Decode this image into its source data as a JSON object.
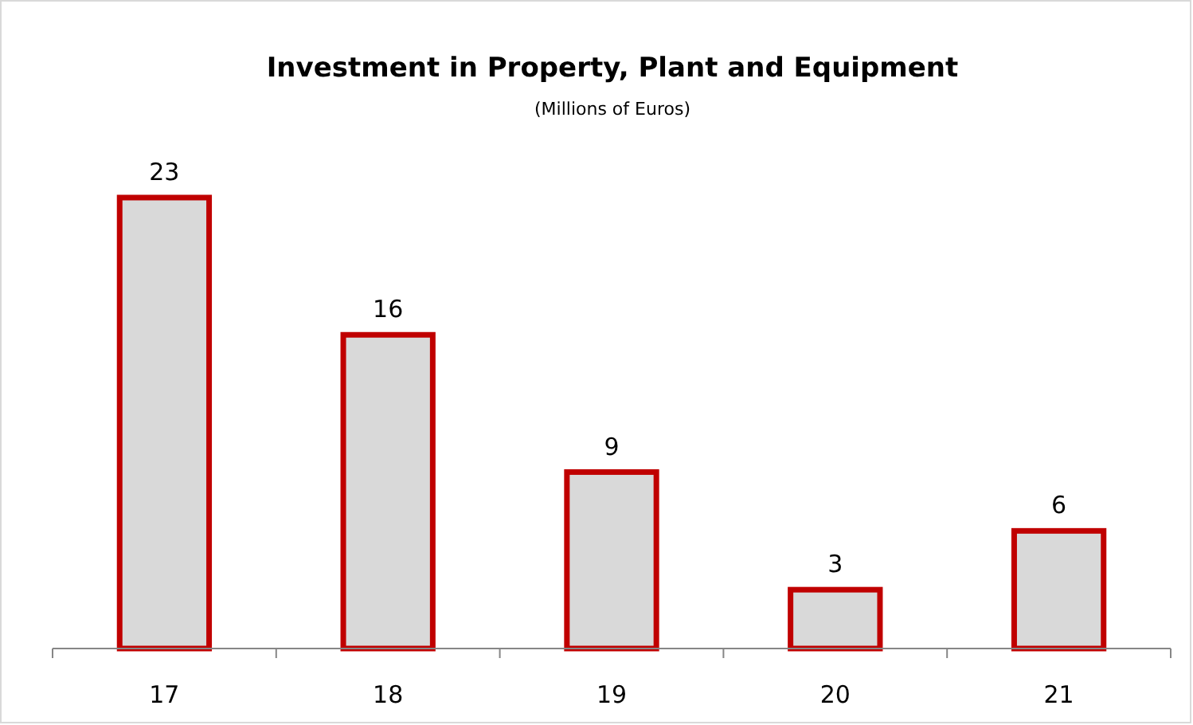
{
  "chart_data": {
    "type": "bar",
    "title": "Investment in Property, Plant and Equipment",
    "subtitle": "(Millions of Euros)",
    "categories": [
      "17",
      "18",
      "19",
      "20",
      "21"
    ],
    "values": [
      23,
      16,
      9,
      3,
      6
    ],
    "color": "#d9d9d9",
    "data_labels": true
  }
}
